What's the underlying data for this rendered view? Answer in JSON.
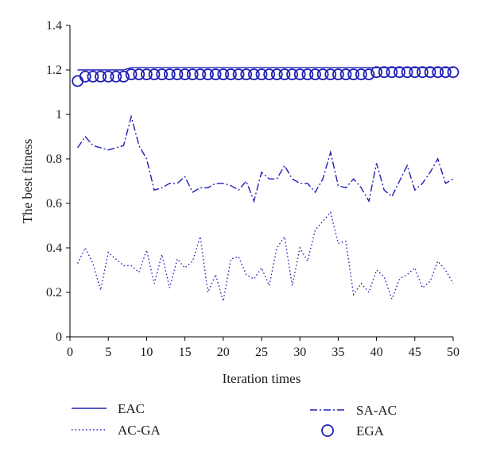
{
  "chart_data": {
    "type": "line",
    "xlabel": "Iteration times",
    "ylabel": "The best fitness",
    "xlim": [
      0,
      50
    ],
    "ylim": [
      0,
      1.4
    ],
    "xticks": [
      0,
      5,
      10,
      15,
      20,
      25,
      30,
      35,
      40,
      45,
      50
    ],
    "yticks": [
      0,
      0.2,
      0.4,
      0.6,
      0.8,
      1,
      1.2,
      1.4
    ],
    "ytick_labels": [
      "0",
      "0.2",
      "0.4",
      "0.6",
      "0.8",
      "1",
      "1.2",
      "1.4"
    ],
    "grid": false,
    "legend_position": "bottom",
    "x": [
      1,
      2,
      3,
      4,
      5,
      6,
      7,
      8,
      9,
      10,
      11,
      12,
      13,
      14,
      15,
      16,
      17,
      18,
      19,
      20,
      21,
      22,
      23,
      24,
      25,
      26,
      27,
      28,
      29,
      30,
      31,
      32,
      33,
      34,
      35,
      36,
      37,
      38,
      39,
      40,
      41,
      42,
      43,
      44,
      45,
      46,
      47,
      48,
      49,
      50
    ],
    "series": [
      {
        "name": "EAC",
        "style": "solid",
        "color": "#1f1fb4",
        "values": [
          1.2,
          1.2,
          1.2,
          1.2,
          1.2,
          1.2,
          1.2,
          1.21,
          1.21,
          1.21,
          1.21,
          1.21,
          1.21,
          1.21,
          1.21,
          1.21,
          1.21,
          1.21,
          1.21,
          1.21,
          1.21,
          1.21,
          1.21,
          1.21,
          1.21,
          1.21,
          1.21,
          1.21,
          1.21,
          1.21,
          1.21,
          1.21,
          1.21,
          1.21,
          1.21,
          1.21,
          1.21,
          1.21,
          1.21,
          1.21,
          1.21,
          1.21,
          1.21,
          1.21,
          1.21,
          1.21,
          1.21,
          1.21,
          1.21,
          1.21
        ]
      },
      {
        "name": "AC-GA",
        "style": "dotted",
        "color": "#1f1fb4",
        "values": [
          0.33,
          0.4,
          0.33,
          0.21,
          0.38,
          0.35,
          0.32,
          0.32,
          0.29,
          0.39,
          0.24,
          0.37,
          0.22,
          0.35,
          0.31,
          0.34,
          0.45,
          0.2,
          0.28,
          0.16,
          0.35,
          0.36,
          0.28,
          0.26,
          0.31,
          0.23,
          0.4,
          0.45,
          0.23,
          0.4,
          0.34,
          0.48,
          0.52,
          0.56,
          0.42,
          0.43,
          0.19,
          0.24,
          0.2,
          0.3,
          0.27,
          0.17,
          0.26,
          0.28,
          0.31,
          0.22,
          0.25,
          0.34,
          0.3,
          0.24
        ]
      },
      {
        "name": "SA-AC",
        "style": "dashdot",
        "color": "#1f1fb4",
        "values": [
          0.85,
          0.9,
          0.86,
          0.85,
          0.84,
          0.85,
          0.86,
          0.99,
          0.86,
          0.8,
          0.66,
          0.67,
          0.69,
          0.69,
          0.72,
          0.65,
          0.67,
          0.67,
          0.69,
          0.69,
          0.68,
          0.66,
          0.7,
          0.61,
          0.74,
          0.71,
          0.71,
          0.77,
          0.71,
          0.69,
          0.69,
          0.65,
          0.71,
          0.83,
          0.68,
          0.67,
          0.71,
          0.67,
          0.61,
          0.78,
          0.66,
          0.63,
          0.7,
          0.77,
          0.66,
          0.69,
          0.74,
          0.8,
          0.69,
          0.71
        ]
      },
      {
        "name": "EGA",
        "style": "circle-markers",
        "color": "#1f1fb4",
        "values": [
          1.15,
          1.17,
          1.17,
          1.17,
          1.17,
          1.17,
          1.17,
          1.18,
          1.18,
          1.18,
          1.18,
          1.18,
          1.18,
          1.18,
          1.18,
          1.18,
          1.18,
          1.18,
          1.18,
          1.18,
          1.18,
          1.18,
          1.18,
          1.18,
          1.18,
          1.18,
          1.18,
          1.18,
          1.18,
          1.18,
          1.18,
          1.18,
          1.18,
          1.18,
          1.18,
          1.18,
          1.18,
          1.18,
          1.18,
          1.19,
          1.19,
          1.19,
          1.19,
          1.19,
          1.19,
          1.19,
          1.19,
          1.19,
          1.19,
          1.19
        ]
      }
    ]
  }
}
